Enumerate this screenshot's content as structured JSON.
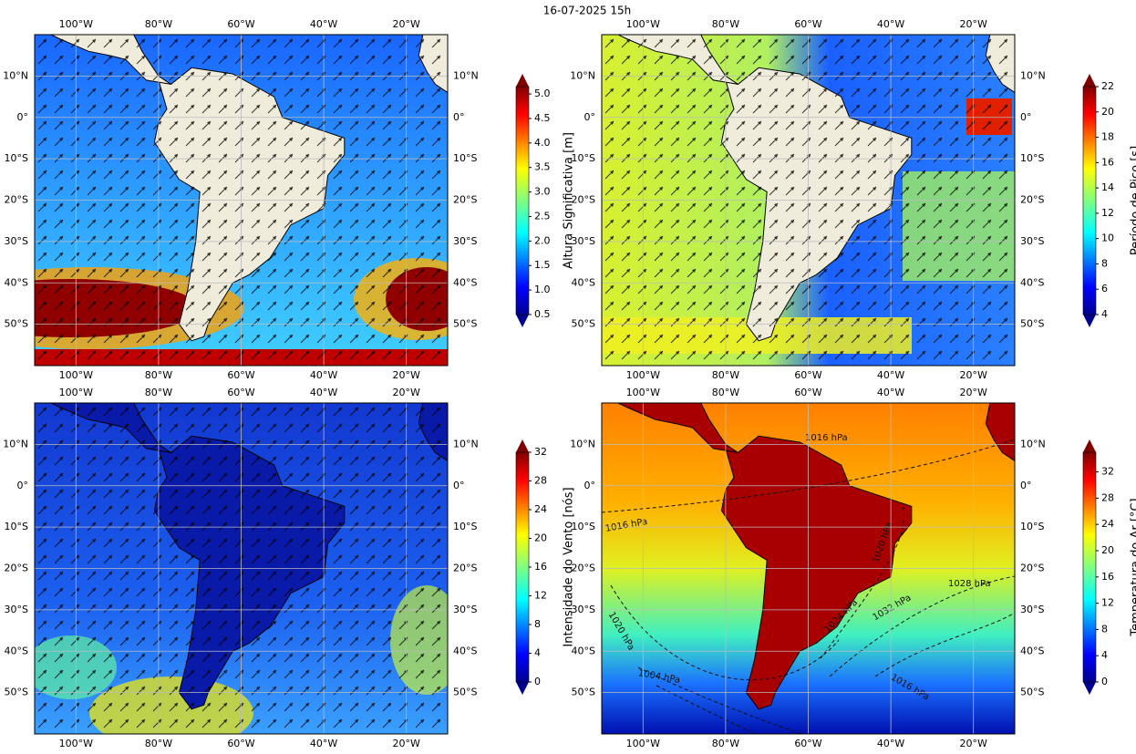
{
  "title": "16-07-2025 15h",
  "lon_lim": [
    -110,
    -10
  ],
  "lat_lim": [
    -60,
    20
  ],
  "lon_ticks": [
    {
      "value": -100,
      "label": "100°W"
    },
    {
      "value": -80,
      "label": "80°W"
    },
    {
      "value": -60,
      "label": "60°W"
    },
    {
      "value": -40,
      "label": "40°W"
    },
    {
      "value": -20,
      "label": "20°W"
    }
  ],
  "lat_ticks": [
    {
      "value": 10,
      "label": "10°N"
    },
    {
      "value": 0,
      "label": "0°"
    },
    {
      "value": -10,
      "label": "10°S"
    },
    {
      "value": -20,
      "label": "20°S"
    },
    {
      "value": -30,
      "label": "30°S"
    },
    {
      "value": -40,
      "label": "40°S"
    },
    {
      "value": -50,
      "label": "50°S"
    }
  ],
  "panels": [
    {
      "colorbar_label": "Altura Significativa [m]",
      "colorbar_lim": [
        0.5,
        5.15
      ],
      "colorbar_ticks": [
        0.5,
        {
          "value": 1,
          "label": "1.0"
        },
        1.5,
        {
          "value": 2,
          "label": "2.0"
        },
        2.5,
        {
          "value": 3,
          "label": "3.0"
        },
        3.5,
        {
          "value": 4,
          "label": "4.0"
        },
        4.5,
        {
          "value": 5,
          "label": "5.0"
        }
      ]
    },
    {
      "colorbar_label": "Período de Pico [s]",
      "colorbar_lim": [
        4,
        22
      ],
      "colorbar_ticks": [
        4,
        6,
        8,
        10,
        12,
        14,
        16,
        18,
        20,
        22
      ]
    },
    {
      "colorbar_label": "Intensidade do Vento [nós]",
      "colorbar_lim": [
        0,
        32
      ],
      "colorbar_ticks": [
        0,
        4,
        8,
        12,
        16,
        20,
        24,
        28,
        32
      ]
    },
    {
      "colorbar_label": "Temperatura do Ar [°C]",
      "colorbar_lim": [
        0,
        35
      ],
      "colorbar_ticks": [
        0,
        4,
        8,
        12,
        16,
        20,
        24,
        28,
        32
      ],
      "isobar_labels": [
        "1016 hPa",
        "1016 hPa",
        "1020 hPa",
        "1020 hPa",
        "1024 hPa",
        "1028 hPa",
        "1032 hPa",
        "1016 hPa",
        "1004 hPa"
      ]
    }
  ]
}
